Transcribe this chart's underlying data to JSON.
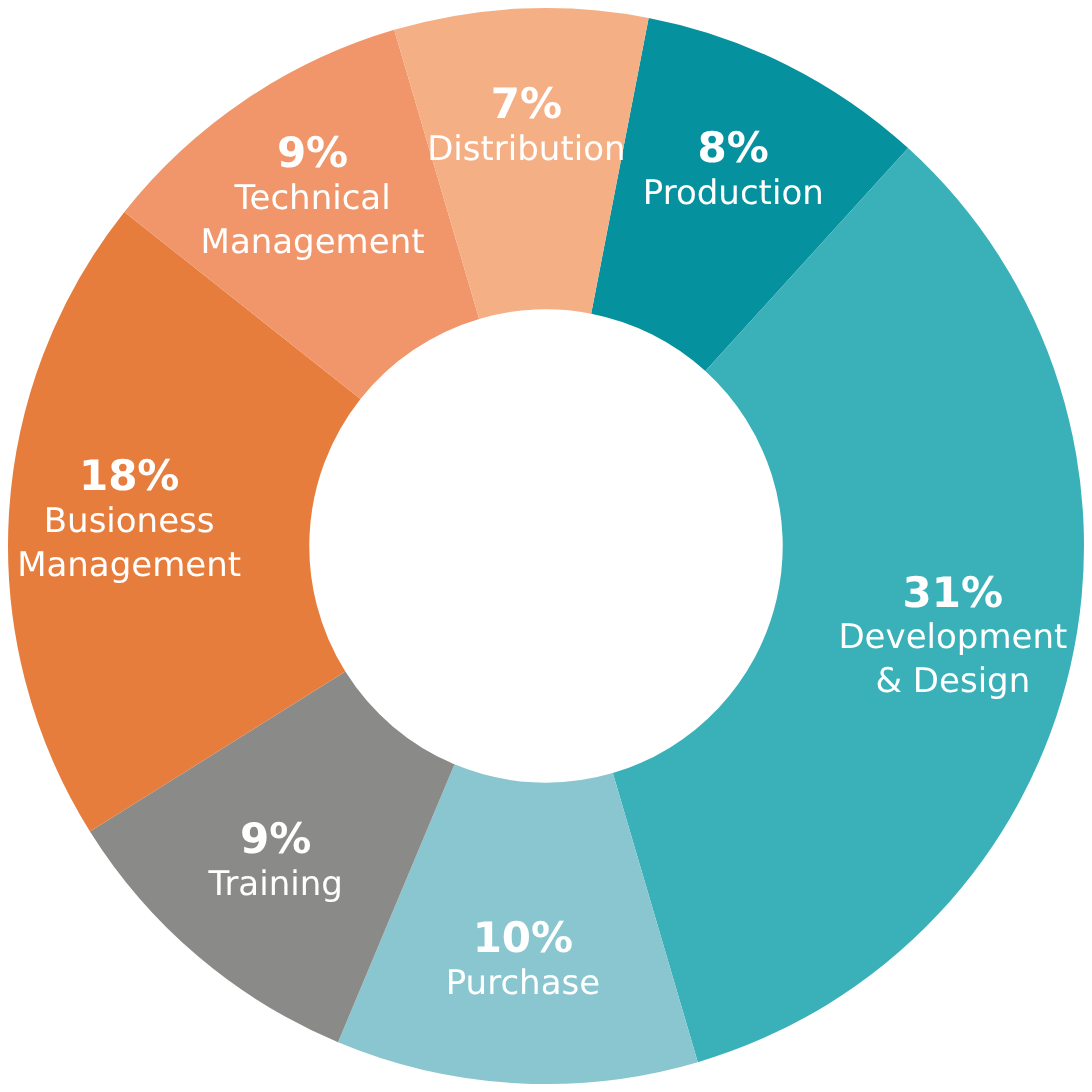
{
  "chart_data": {
    "type": "donut",
    "categories": [
      "Production",
      "Development & Design",
      "Purchase",
      "Training",
      "Busioness Management",
      "Technical Management",
      "Distribution"
    ],
    "values": [
      8,
      31,
      10,
      9,
      18,
      9,
      7
    ],
    "colors": [
      "#05919e",
      "#3ab1b9",
      "#8ac6d0",
      "#8a8a89",
      "#e67d3d",
      "#f1966a",
      "#f5af85"
    ],
    "value_labels": [
      "8%",
      "31%",
      "10%",
      "9%",
      "18%",
      "9%",
      "7%"
    ],
    "legend": false
  }
}
